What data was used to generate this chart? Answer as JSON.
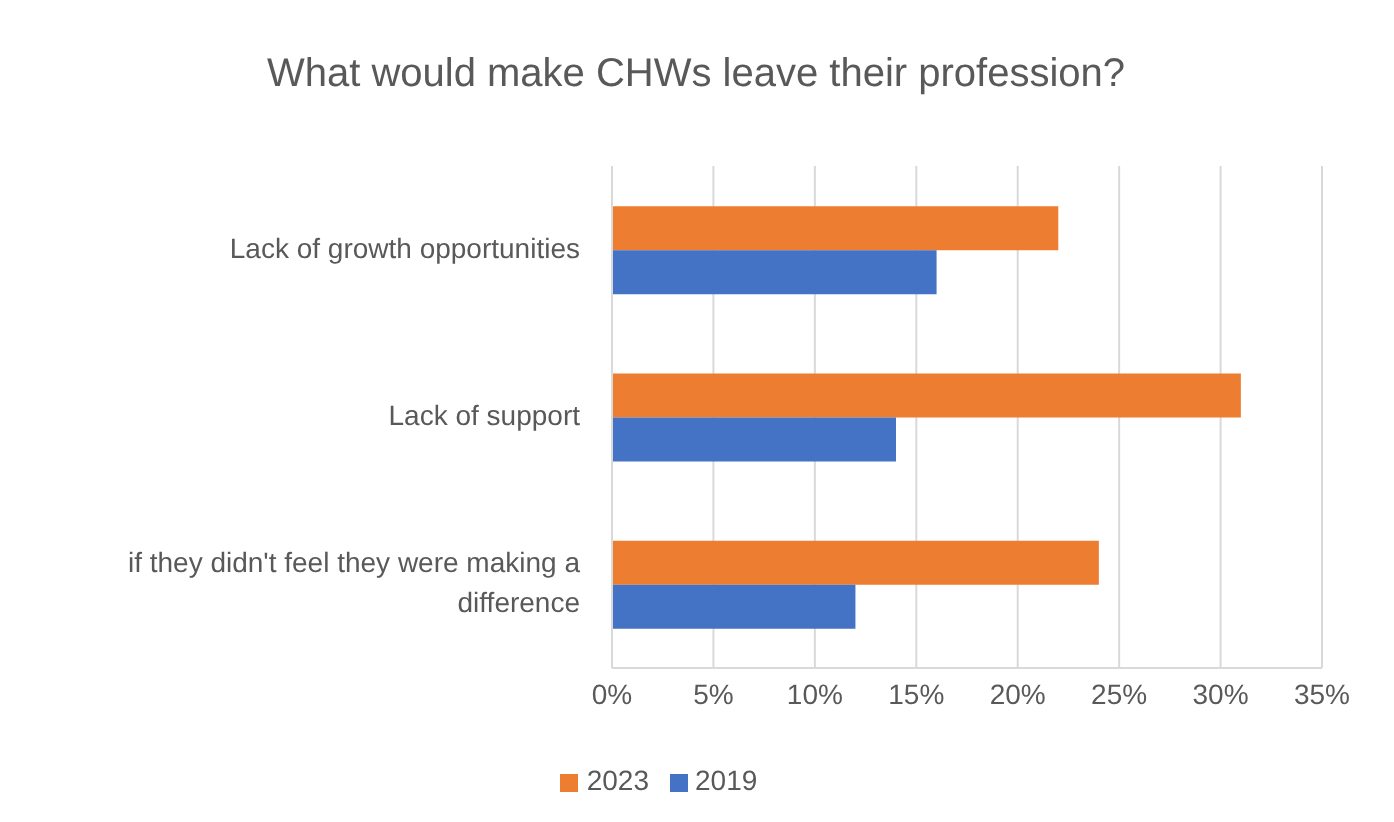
{
  "chart_data": {
    "type": "bar",
    "orientation": "horizontal",
    "title": "What would make CHWs leave their profession?",
    "categories": [
      "Lack of growth opportunities",
      "Lack of support",
      "if they didn't feel they were making a difference"
    ],
    "series": [
      {
        "name": "2023",
        "color": "#ed7d31",
        "values": [
          22,
          31,
          24
        ]
      },
      {
        "name": "2019",
        "color": "#4472c4",
        "values": [
          16,
          14,
          12
        ]
      }
    ],
    "xlim": [
      0,
      35
    ],
    "xticks": [
      {
        "value": 0,
        "label": "0%"
      },
      {
        "value": 5,
        "label": "5%"
      },
      {
        "value": 10,
        "label": "10%"
      },
      {
        "value": 15,
        "label": "15%"
      },
      {
        "value": 20,
        "label": "20%"
      },
      {
        "value": 25,
        "label": "25%"
      },
      {
        "value": 30,
        "label": "30%"
      },
      {
        "value": 35,
        "label": "35%"
      }
    ],
    "grid": "x",
    "legend": "bottom"
  }
}
